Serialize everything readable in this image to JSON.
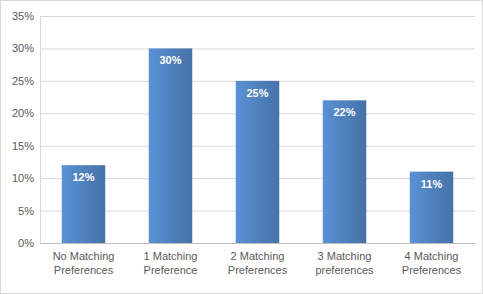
{
  "chart_data": {
    "type": "bar",
    "categories": [
      "No Matching Preferences",
      "1 Matching Preference",
      "2 Matching Preferences",
      "3 Matching preferences",
      "4 Matching Preferences"
    ],
    "values": [
      12,
      30,
      25,
      22,
      11
    ],
    "value_labels": [
      "12%",
      "30%",
      "25%",
      "22%",
      "11%"
    ],
    "color": "#4f81bd",
    "ylim": [
      0,
      35
    ],
    "yticks": [
      {
        "value": 0,
        "label": "0%"
      },
      {
        "value": 5,
        "label": "5%"
      },
      {
        "value": 10,
        "label": "10%"
      },
      {
        "value": 15,
        "label": "15%"
      },
      {
        "value": 20,
        "label": "20%"
      },
      {
        "value": 25,
        "label": "25%"
      },
      {
        "value": 30,
        "label": "30%"
      },
      {
        "value": 35,
        "label": "35%"
      }
    ],
    "grid": true,
    "data_labels": true
  }
}
